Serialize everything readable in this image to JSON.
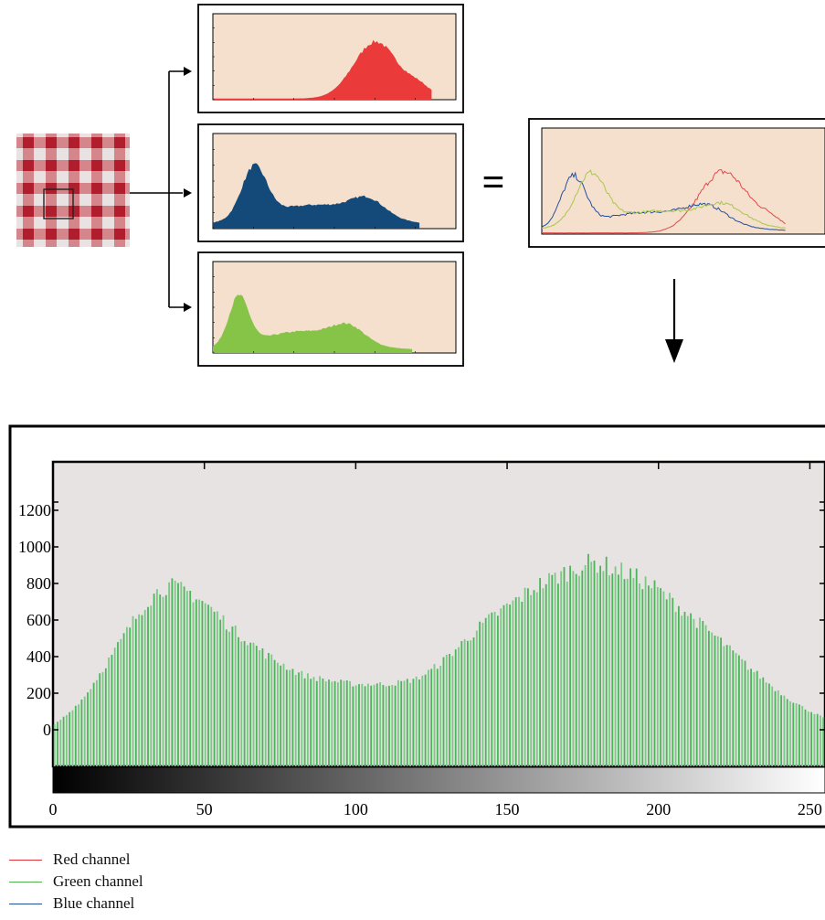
{
  "chart_data": {
    "type": "bar",
    "x_ticks": [
      "0",
      "50",
      "100",
      "150",
      "200",
      "250"
    ],
    "y_ticks": [
      "0",
      "200",
      "400",
      "600",
      "800",
      "1000",
      "1200"
    ],
    "xlim": [
      0,
      255
    ],
    "ylim": [
      0,
      1200
    ],
    "grid": false,
    "series": [
      {
        "name": "Green channel",
        "color": "#3cae3c",
        "x": [
          0,
          5,
          10,
          15,
          20,
          25,
          30,
          35,
          38,
          40,
          45,
          50,
          55,
          60,
          65,
          70,
          75,
          80,
          85,
          90,
          95,
          100,
          105,
          110,
          115,
          120,
          125,
          130,
          135,
          140,
          145,
          150,
          155,
          160,
          165,
          170,
          175,
          180,
          185,
          190,
          195,
          200,
          205,
          210,
          215,
          220,
          225,
          230,
          235,
          240,
          245,
          250,
          255
        ],
        "values": [
          30,
          100,
          190,
          320,
          450,
          590,
          720,
          800,
          820,
          810,
          780,
          720,
          640,
          560,
          500,
          430,
          380,
          330,
          300,
          285,
          270,
          260,
          260,
          260,
          270,
          290,
          340,
          410,
          490,
          570,
          640,
          700,
          760,
          820,
          860,
          900,
          940,
          950,
          920,
          890,
          850,
          800,
          730,
          660,
          590,
          520,
          440,
          360,
          290,
          220,
          160,
          110,
          70
        ]
      }
    ]
  },
  "channel_panels": [
    {
      "name": "Red channel",
      "color": "#ea3a3a"
    },
    {
      "name": "Blue channel",
      "color": "#134a7a"
    },
    {
      "name": "Green channel",
      "color": "#86c447"
    }
  ],
  "equals_sign": "=",
  "legend": [
    {
      "label": "Red channel",
      "color": "#e0353b"
    },
    {
      "label": "Green channel",
      "color": "#4fb24f"
    },
    {
      "label": "Blue channel",
      "color": "#1f4f9a"
    }
  ]
}
